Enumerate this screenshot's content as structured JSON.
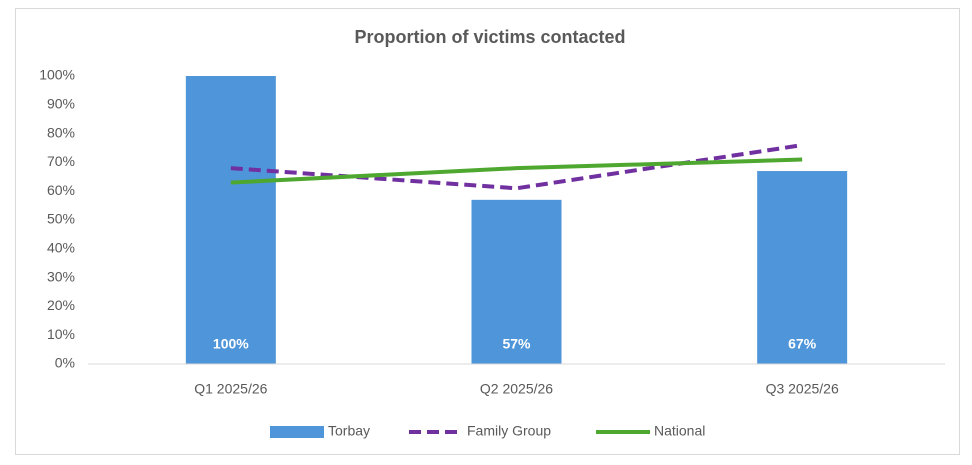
{
  "chart_data": {
    "type": "bar",
    "title": "Proportion of victims contacted",
    "categories": [
      "Q1 2025/26",
      "Q2 2025/26",
      "Q3 2025/26"
    ],
    "series": [
      {
        "name": "Torbay",
        "type": "bar",
        "color": "#4e95d9",
        "values": [
          100,
          57,
          67
        ],
        "value_labels": [
          "100%",
          "57%",
          "67%"
        ]
      },
      {
        "name": "Family Group",
        "type": "line",
        "dash": true,
        "color": "#7030a0",
        "values": [
          68,
          61,
          76
        ]
      },
      {
        "name": "National",
        "type": "line",
        "dash": false,
        "color": "#4ea72e",
        "values": [
          63,
          68,
          71
        ]
      }
    ],
    "ylim": [
      0,
      100
    ],
    "yticks": [
      {
        "value": 0,
        "label": "0%"
      },
      {
        "value": 10,
        "label": "10%"
      },
      {
        "value": 20,
        "label": "20%"
      },
      {
        "value": 30,
        "label": "30%"
      },
      {
        "value": 40,
        "label": "40%"
      },
      {
        "value": 50,
        "label": "50%"
      },
      {
        "value": 60,
        "label": "60%"
      },
      {
        "value": 70,
        "label": "70%"
      },
      {
        "value": 80,
        "label": "80%"
      },
      {
        "value": 90,
        "label": "90%"
      },
      {
        "value": 100,
        "label": "100%"
      }
    ],
    "grid": false,
    "legend": "bottom"
  }
}
